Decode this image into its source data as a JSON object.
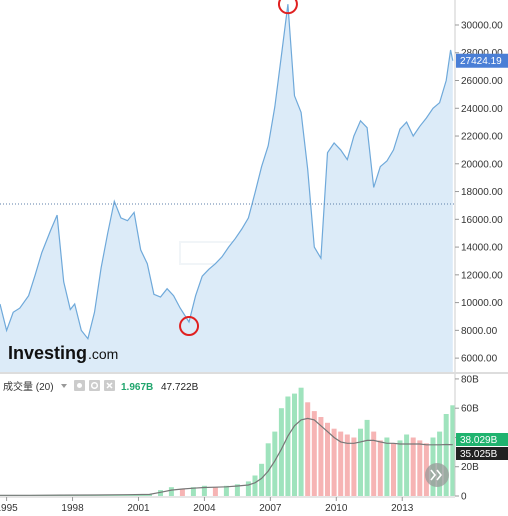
{
  "brand": {
    "name": "Investing",
    "suffix": ".com"
  },
  "volume_panel": {
    "label": "成交量 (20)",
    "value_green": "1.967B",
    "value_dark": "47.722B",
    "tag_green": "38.029B",
    "tag_dark": "35.025B"
  },
  "price_tag": "27424.19",
  "colors": {
    "line": "#6fa9da",
    "fill": "#dcebf8",
    "up_bar": "#9fe3bd",
    "down_bar": "#f6b4b4",
    "ma_line": "#777777",
    "tag_blue": "#4a7fd6",
    "tag_green": "#20b36f",
    "tag_dark": "#222222",
    "marker": "#e02020"
  },
  "chart_data": [
    {
      "type": "area",
      "title": "",
      "xlabel": "",
      "ylabel": "",
      "x_ticks": [
        "1995",
        "1998",
        "2001",
        "2004",
        "2007",
        "2010",
        "2013"
      ],
      "y_ticks": [
        "6000.00",
        "8000.00",
        "10000.00",
        "12000.00",
        "14000.00",
        "16000.00",
        "18000.00",
        "20000.00",
        "22000.00",
        "24000.00",
        "26000.00",
        "28000.00",
        "30000.00"
      ],
      "ylim": [
        5000,
        31800
      ],
      "xlim": [
        1994.7,
        2015.4
      ],
      "horizontal_ref": 17100,
      "last_value": 27424.19,
      "markers": [
        {
          "x": 2003.3,
          "y": 8600
        },
        {
          "x": 2007.8,
          "y": 31500
        }
      ],
      "series": [
        {
          "x": [
            1994.7,
            1995.0,
            1995.3,
            1995.6,
            1996.0,
            1996.3,
            1996.6,
            1997.0,
            1997.3,
            1997.6,
            1997.9,
            1998.1,
            1998.4,
            1998.7,
            1999.0,
            1999.3,
            1999.6,
            1999.9,
            2000.2,
            2000.5,
            2000.8,
            2001.1,
            2001.4,
            2001.7,
            2002.0,
            2002.3,
            2002.6,
            2002.9,
            2003.3,
            2003.6,
            2003.9,
            2004.2,
            2004.5,
            2004.8,
            2005.1,
            2005.4,
            2005.7,
            2006.0,
            2006.3,
            2006.6,
            2006.9,
            2007.2,
            2007.5,
            2007.8,
            2008.1,
            2008.4,
            2008.7,
            2009.0,
            2009.3,
            2009.6,
            2009.9,
            2010.2,
            2010.5,
            2010.8,
            2011.1,
            2011.4,
            2011.7,
            2012.0,
            2012.3,
            2012.6,
            2012.9,
            2013.2,
            2013.5,
            2013.8,
            2014.1,
            2014.4,
            2014.7,
            2015.0,
            2015.2,
            2015.3
          ],
          "values": [
            9900,
            8000,
            9300,
            9600,
            10500,
            12000,
            13600,
            15200,
            16300,
            11500,
            9500,
            9900,
            8000,
            7400,
            9300,
            12500,
            15000,
            17300,
            16100,
            15900,
            16500,
            13800,
            12800,
            10600,
            10400,
            11000,
            10500,
            9600,
            8600,
            10500,
            11900,
            12400,
            12800,
            13300,
            14000,
            14600,
            15300,
            16100,
            17900,
            19800,
            21300,
            24100,
            27800,
            31500,
            24900,
            23700,
            19600,
            14000,
            13200,
            20800,
            21500,
            21000,
            20300,
            22000,
            23100,
            22600,
            18300,
            19800,
            20200,
            21000,
            22500,
            23000,
            22000,
            22700,
            23300,
            24000,
            24400,
            26000,
            28200,
            27424
          ]
        }
      ]
    },
    {
      "type": "bar",
      "title": "",
      "xlabel": "",
      "ylabel": "",
      "y_ticks": [
        "0",
        "20B",
        "40B",
        "60B",
        "80B"
      ],
      "ylim": [
        0,
        82
      ],
      "x": [
        1994.7,
        1996.0,
        1997.5,
        1999.0,
        2000.5,
        2001.5,
        2002.0,
        2002.5,
        2003.0,
        2003.5,
        2004.0,
        2004.5,
        2005.0,
        2005.5,
        2006.0,
        2006.3,
        2006.6,
        2006.9,
        2007.2,
        2007.5,
        2007.8,
        2008.1,
        2008.4,
        2008.7,
        2009.0,
        2009.3,
        2009.6,
        2009.9,
        2010.2,
        2010.5,
        2010.8,
        2011.1,
        2011.4,
        2011.7,
        2012.0,
        2012.3,
        2012.6,
        2012.9,
        2013.2,
        2013.5,
        2013.8,
        2014.1,
        2014.4,
        2014.7,
        2015.0,
        2015.3
      ],
      "values": [
        0.5,
        0.5,
        0.6,
        0.7,
        0.9,
        1.2,
        4,
        6,
        5,
        6,
        7,
        6,
        7,
        8,
        10,
        14,
        22,
        36,
        44,
        60,
        68,
        70,
        74,
        64,
        58,
        54,
        50,
        46,
        44,
        42,
        40,
        46,
        52,
        44,
        38,
        40,
        36,
        38,
        42,
        40,
        38,
        36,
        40,
        44,
        56,
        62
      ],
      "moving_average": [
        0.5,
        0.5,
        0.6,
        0.7,
        0.9,
        1.1,
        2.5,
        4,
        4.8,
        5.3,
        5.8,
        6,
        6.3,
        6.8,
        7.5,
        9,
        12,
        17,
        24,
        32,
        41,
        48,
        52,
        53,
        52,
        48,
        44,
        40,
        37,
        36,
        36,
        37,
        38,
        38,
        37,
        36,
        36,
        35.5,
        35.5,
        35.5,
        35.5,
        35,
        35,
        35,
        35.2,
        35.025
      ]
    }
  ]
}
